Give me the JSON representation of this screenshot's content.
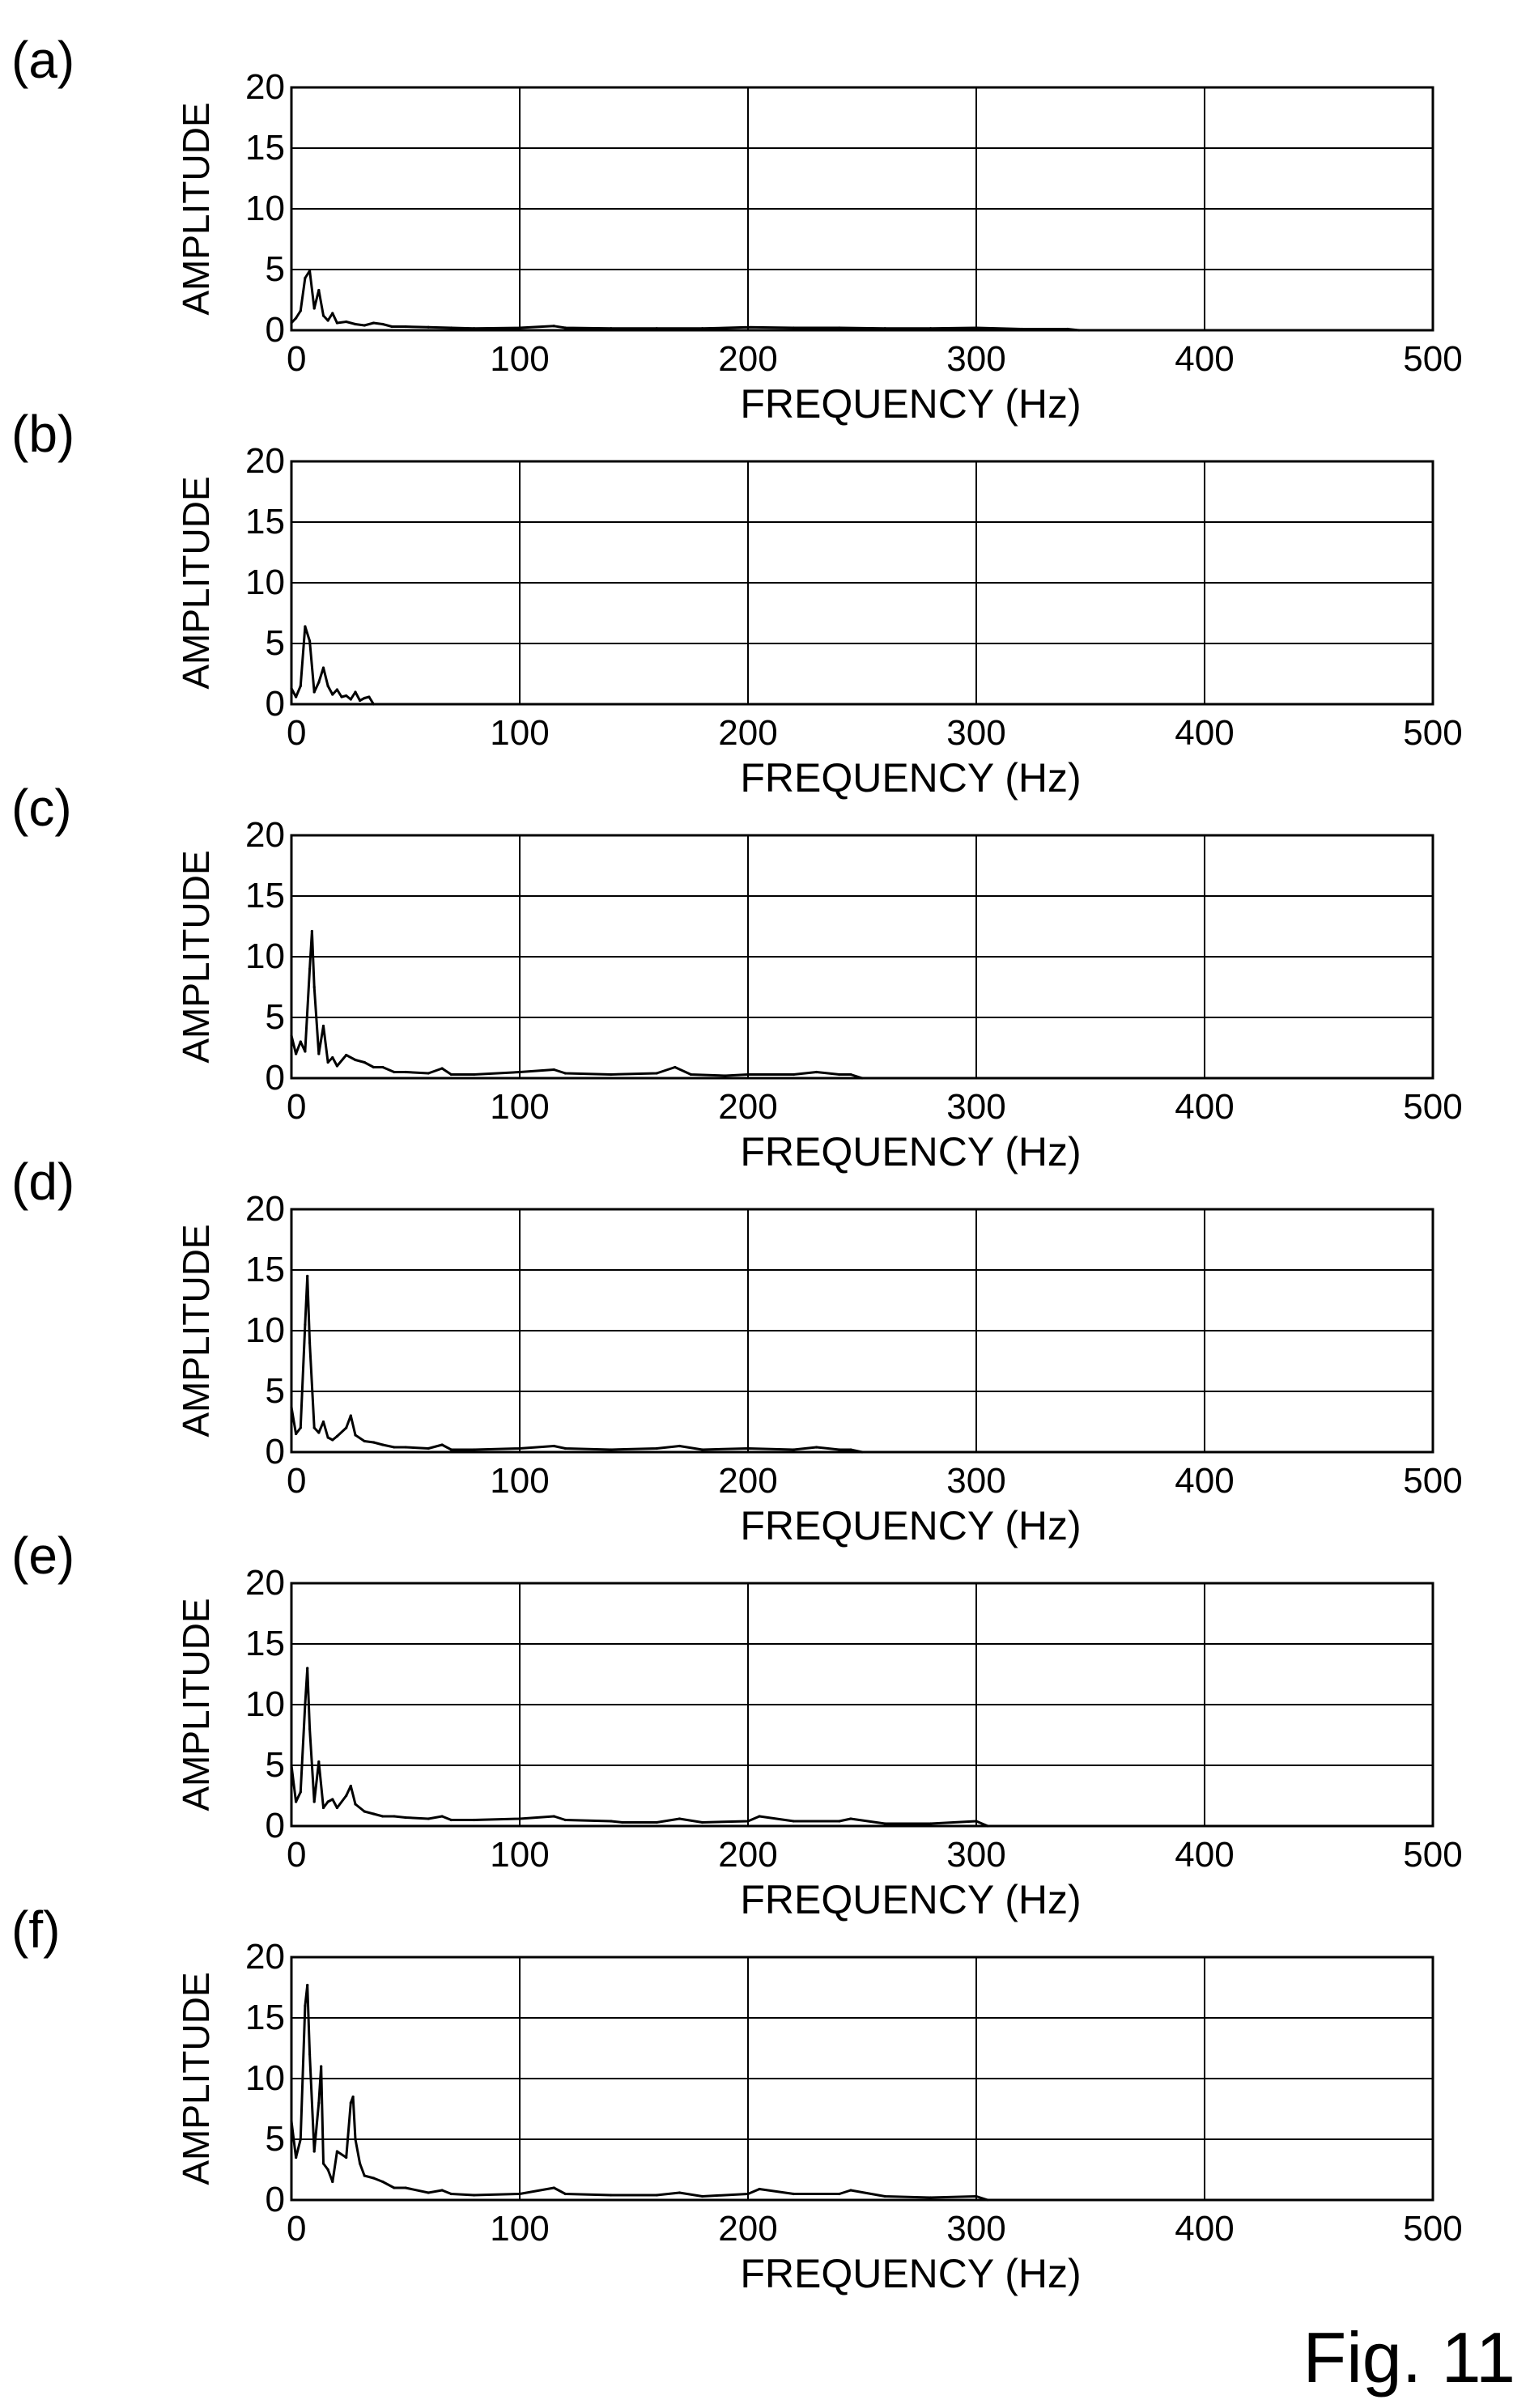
{
  "figure_label": "Fig. 11",
  "chart_data": [
    {
      "type": "line",
      "panel_label": "(a)",
      "xlabel": "FREQUENCY (Hz)",
      "ylabel": "AMPLITUDE",
      "xlim": [
        0,
        500
      ],
      "ylim": [
        0,
        20
      ],
      "xticks": [
        "0",
        "100",
        "200",
        "300",
        "400",
        "500"
      ],
      "yticks": [
        "0",
        "5",
        "10",
        "15",
        "20"
      ],
      "grid": true,
      "series": [
        {
          "x": [
            0,
            2,
            4,
            6,
            8,
            10,
            12,
            14,
            16,
            18,
            20,
            24,
            28,
            32,
            36,
            40,
            44,
            50,
            60,
            70,
            80,
            100,
            115,
            120,
            140,
            160,
            180,
            200,
            220,
            240,
            260,
            280,
            300,
            320,
            340,
            345
          ],
          "y": [
            0.6,
            1.0,
            1.6,
            4.3,
            4.9,
            1.8,
            3.3,
            1.2,
            0.8,
            1.4,
            0.6,
            0.7,
            0.5,
            0.4,
            0.6,
            0.5,
            0.3,
            0.3,
            0.25,
            0.2,
            0.15,
            0.2,
            0.35,
            0.2,
            0.15,
            0.15,
            0.15,
            0.25,
            0.2,
            0.2,
            0.15,
            0.15,
            0.2,
            0.1,
            0.1,
            0.0
          ]
        }
      ]
    },
    {
      "type": "line",
      "panel_label": "(b)",
      "xlabel": "FREQUENCY (Hz)",
      "ylabel": "AMPLITUDE",
      "xlim": [
        0,
        500
      ],
      "ylim": [
        0,
        20
      ],
      "xticks": [
        "0",
        "100",
        "200",
        "300",
        "400",
        "500"
      ],
      "yticks": [
        "0",
        "5",
        "10",
        "15",
        "20"
      ],
      "grid": true,
      "series": [
        {
          "x": [
            0,
            2,
            4,
            6,
            8,
            10,
            12,
            14,
            16,
            18,
            20,
            22,
            24,
            26,
            28,
            30,
            32,
            34,
            36
          ],
          "y": [
            1.3,
            0.6,
            1.5,
            6.4,
            5.2,
            1.0,
            1.8,
            3.0,
            1.5,
            0.8,
            1.2,
            0.6,
            0.7,
            0.4,
            1.0,
            0.3,
            0.5,
            0.6,
            0.0
          ]
        }
      ]
    },
    {
      "type": "line",
      "panel_label": "(c)",
      "xlabel": "FREQUENCY (Hz)",
      "ylabel": "AMPLITUDE",
      "xlim": [
        0,
        500
      ],
      "ylim": [
        0,
        20
      ],
      "xticks": [
        "0",
        "100",
        "200",
        "300",
        "400",
        "500"
      ],
      "yticks": [
        "0",
        "5",
        "10",
        "15",
        "20"
      ],
      "grid": true,
      "series": [
        {
          "x": [
            0,
            2,
            4,
            6,
            8,
            9,
            10,
            12,
            14,
            16,
            18,
            20,
            24,
            28,
            32,
            36,
            40,
            45,
            50,
            60,
            66,
            70,
            80,
            100,
            115,
            120,
            140,
            160,
            168,
            175,
            190,
            200,
            220,
            230,
            240,
            245,
            250
          ],
          "y": [
            3.5,
            2.0,
            3.0,
            2.2,
            9.0,
            12.1,
            7.5,
            2.0,
            4.3,
            1.3,
            1.7,
            1.0,
            1.9,
            1.5,
            1.3,
            0.9,
            0.9,
            0.5,
            0.5,
            0.4,
            0.8,
            0.3,
            0.3,
            0.5,
            0.7,
            0.4,
            0.3,
            0.4,
            0.9,
            0.3,
            0.2,
            0.3,
            0.3,
            0.5,
            0.3,
            0.3,
            0.0
          ]
        }
      ]
    },
    {
      "type": "line",
      "panel_label": "(d)",
      "xlabel": "FREQUENCY (Hz)",
      "ylabel": "AMPLITUDE",
      "xlim": [
        0,
        500
      ],
      "ylim": [
        0,
        20
      ],
      "xticks": [
        "0",
        "100",
        "200",
        "300",
        "400",
        "500"
      ],
      "yticks": [
        "0",
        "5",
        "10",
        "15",
        "20"
      ],
      "grid": true,
      "series": [
        {
          "x": [
            0,
            2,
            4,
            6,
            7,
            8,
            10,
            12,
            14,
            16,
            18,
            20,
            24,
            26,
            28,
            32,
            36,
            40,
            45,
            50,
            60,
            66,
            70,
            80,
            100,
            115,
            120,
            140,
            160,
            170,
            180,
            200,
            220,
            230,
            240,
            245,
            250
          ],
          "y": [
            3.7,
            1.5,
            2.0,
            10.5,
            14.5,
            9.0,
            2.0,
            1.6,
            2.5,
            1.2,
            1.0,
            1.3,
            2.0,
            3.0,
            1.4,
            0.9,
            0.8,
            0.6,
            0.4,
            0.4,
            0.3,
            0.6,
            0.2,
            0.2,
            0.3,
            0.5,
            0.3,
            0.2,
            0.3,
            0.5,
            0.2,
            0.3,
            0.2,
            0.4,
            0.2,
            0.2,
            0.0
          ]
        }
      ]
    },
    {
      "type": "line",
      "panel_label": "(e)",
      "xlabel": "FREQUENCY (Hz)",
      "ylabel": "AMPLITUDE",
      "xlim": [
        0,
        500
      ],
      "ylim": [
        0,
        20
      ],
      "xticks": [
        "0",
        "100",
        "200",
        "300",
        "400",
        "500"
      ],
      "yticks": [
        "0",
        "5",
        "10",
        "15",
        "20"
      ],
      "grid": true,
      "series": [
        {
          "x": [
            0,
            2,
            4,
            6,
            7,
            8,
            10,
            12,
            14,
            16,
            18,
            20,
            24,
            26,
            28,
            32,
            36,
            40,
            45,
            50,
            60,
            66,
            70,
            80,
            100,
            115,
            120,
            140,
            145,
            160,
            170,
            180,
            200,
            205,
            220,
            240,
            245,
            260,
            280,
            300,
            305
          ],
          "y": [
            5.0,
            2.0,
            2.8,
            10.0,
            13.0,
            8.0,
            2.0,
            5.3,
            1.5,
            2.0,
            2.2,
            1.5,
            2.5,
            3.3,
            1.8,
            1.2,
            1.0,
            0.8,
            0.8,
            0.7,
            0.6,
            0.8,
            0.5,
            0.5,
            0.6,
            0.8,
            0.5,
            0.4,
            0.3,
            0.3,
            0.6,
            0.3,
            0.4,
            0.8,
            0.4,
            0.4,
            0.6,
            0.2,
            0.2,
            0.4,
            0.0
          ]
        }
      ]
    },
    {
      "type": "line",
      "panel_label": "(f)",
      "xlabel": "FREQUENCY (Hz)",
      "ylabel": "AMPLITUDE",
      "xlim": [
        0,
        500
      ],
      "ylim": [
        0,
        20
      ],
      "xticks": [
        "0",
        "100",
        "200",
        "300",
        "400",
        "500"
      ],
      "yticks": [
        "0",
        "5",
        "10",
        "15",
        "20"
      ],
      "grid": true,
      "series": [
        {
          "x": [
            0,
            2,
            4,
            6,
            7,
            8,
            10,
            12,
            13,
            14,
            16,
            18,
            20,
            24,
            26,
            27,
            28,
            30,
            32,
            36,
            40,
            45,
            50,
            60,
            66,
            70,
            80,
            100,
            115,
            120,
            140,
            160,
            170,
            180,
            200,
            205,
            220,
            240,
            245,
            260,
            280,
            300,
            305
          ],
          "y": [
            6.5,
            3.5,
            5.0,
            16.0,
            17.7,
            12.0,
            4.0,
            8.0,
            11.0,
            3.0,
            2.5,
            1.5,
            4.0,
            3.5,
            8.0,
            8.5,
            5.0,
            3.0,
            2.0,
            1.8,
            1.5,
            1.0,
            1.0,
            0.6,
            0.8,
            0.5,
            0.4,
            0.5,
            1.0,
            0.5,
            0.4,
            0.4,
            0.6,
            0.3,
            0.5,
            0.9,
            0.5,
            0.5,
            0.8,
            0.3,
            0.2,
            0.3,
            0.0
          ]
        }
      ]
    }
  ]
}
